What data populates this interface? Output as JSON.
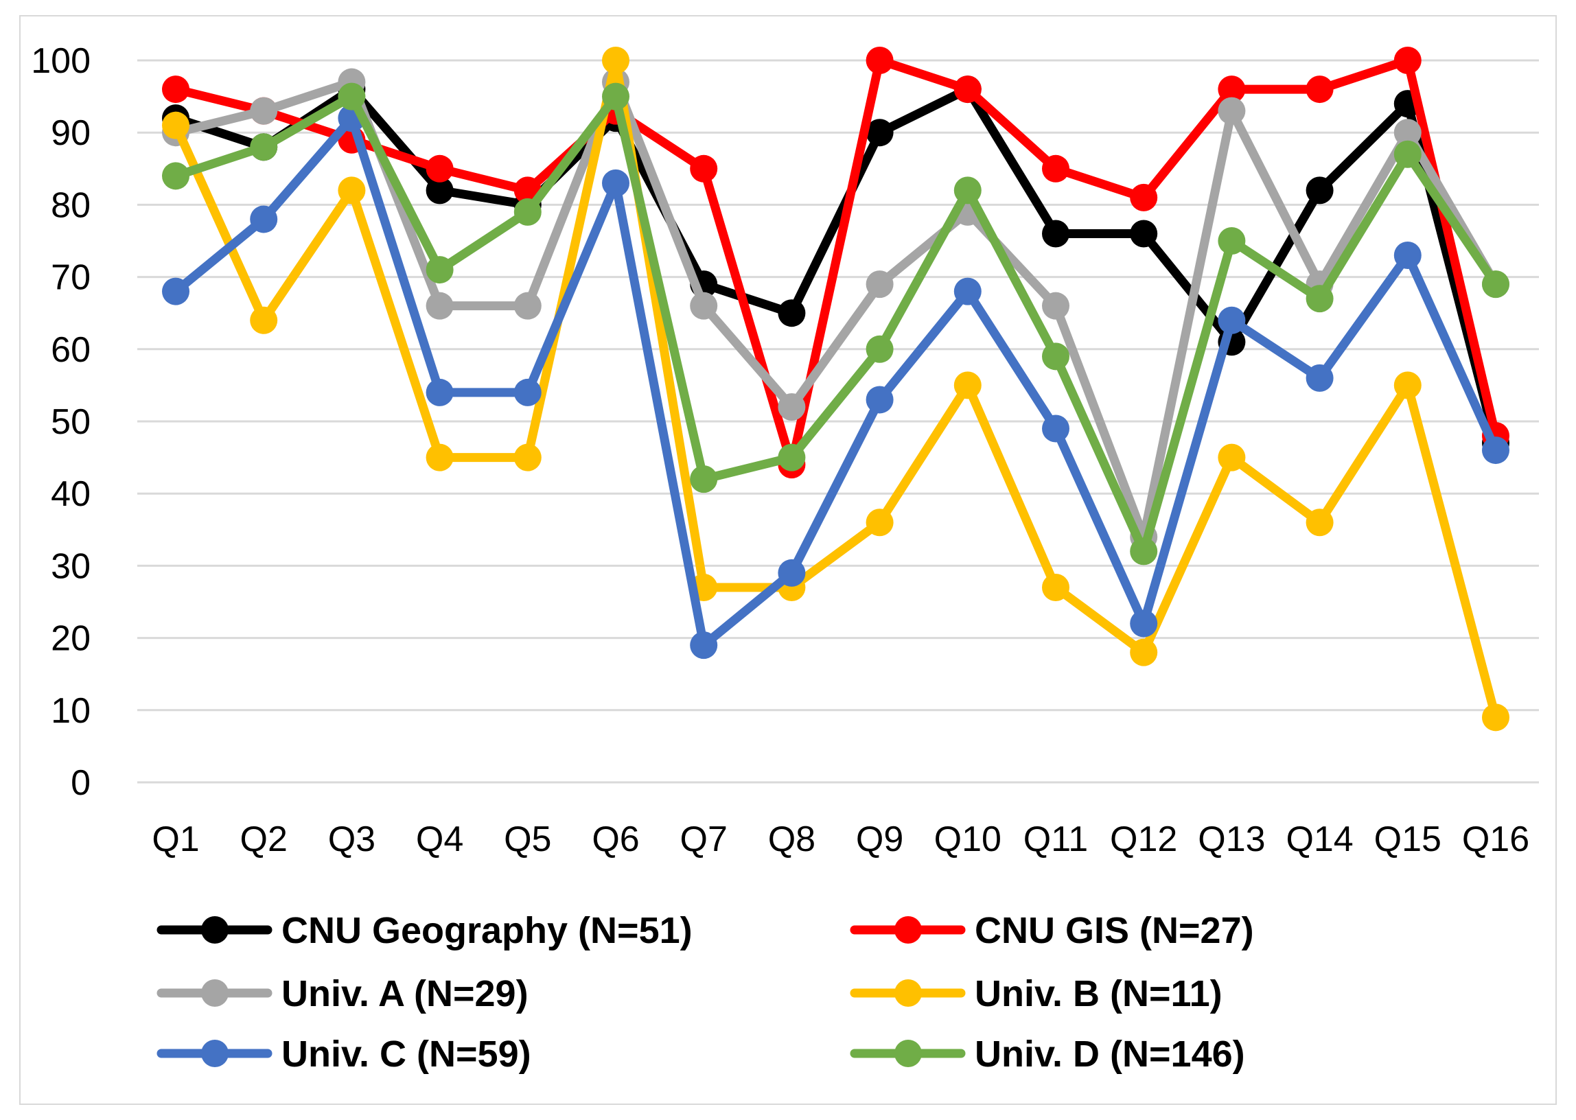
{
  "chart_data": {
    "type": "line",
    "title": "",
    "xlabel": "",
    "ylabel": "",
    "ylim": [
      0,
      100
    ],
    "y_ticks": [
      "0",
      "10",
      "20",
      "30",
      "40",
      "50",
      "60",
      "70",
      "80",
      "90",
      "100"
    ],
    "grid": true,
    "legend_position": "bottom",
    "categories": [
      "Q1",
      "Q2",
      "Q3",
      "Q4",
      "Q5",
      "Q6",
      "Q7",
      "Q8",
      "Q9",
      "Q10",
      "Q11",
      "Q12",
      "Q13",
      "Q14",
      "Q15",
      "Q16"
    ],
    "series": [
      {
        "name": "CNU Geography (N=51)",
        "color": "#000000",
        "values": [
          92,
          88,
          96,
          82,
          80,
          92,
          69,
          65,
          90,
          96,
          76,
          76,
          61,
          82,
          94,
          47
        ]
      },
      {
        "name": "CNU GIS (N=27)",
        "color": "#ff0000",
        "values": [
          96,
          93,
          89,
          85,
          82,
          93,
          85,
          44,
          100,
          96,
          85,
          81,
          96,
          96,
          100,
          48
        ]
      },
      {
        "name": "Univ. A (N=29)",
        "color": "#a5a5a5",
        "values": [
          90,
          93,
          97,
          66,
          66,
          97,
          66,
          52,
          69,
          79,
          66,
          34,
          93,
          69,
          90,
          69
        ]
      },
      {
        "name": "Univ. B (N=11)",
        "color": "#ffc000",
        "values": [
          91,
          64,
          82,
          45,
          45,
          100,
          27,
          27,
          36,
          55,
          27,
          18,
          45,
          36,
          55,
          9
        ]
      },
      {
        "name": "Univ. C (N=59)",
        "color": "#4472c4",
        "values": [
          68,
          78,
          92,
          54,
          54,
          83,
          19,
          29,
          53,
          68,
          49,
          22,
          64,
          56,
          73,
          46
        ]
      },
      {
        "name": "Univ. D (N=146)",
        "color": "#70ad47",
        "values": [
          84,
          88,
          95,
          71,
          79,
          95,
          42,
          45,
          60,
          82,
          59,
          32,
          75,
          67,
          87,
          69
        ]
      }
    ]
  }
}
